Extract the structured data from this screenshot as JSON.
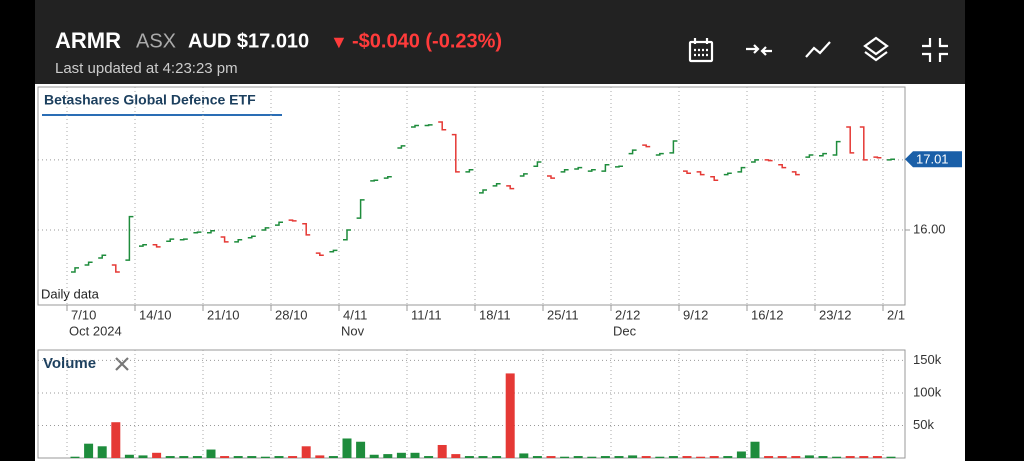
{
  "header": {
    "symbol": "ARMR",
    "exchange": "ASX",
    "price": "AUD $17.010",
    "arrow": "▼",
    "change": "-$0.040 (-0.23%)",
    "updated": "Last updated at 4:23:23 pm"
  },
  "chart_data": [
    {
      "type": "ohlc",
      "title": "Betashares Global Defence ETF",
      "note": "Daily data",
      "categories": [
        "7/10",
        null,
        null,
        null,
        null,
        "14/10",
        null,
        null,
        null,
        null,
        "21/10",
        null,
        null,
        null,
        null,
        "28/10",
        null,
        null,
        null,
        null,
        "4/11",
        null,
        null,
        null,
        null,
        "11/11",
        null,
        null,
        null,
        null,
        "18/11",
        null,
        null,
        null,
        null,
        "25/11",
        null,
        null,
        null,
        null,
        "2/12",
        null,
        null,
        null,
        null,
        "9/12",
        null,
        null,
        null,
        null,
        "16/12",
        null,
        null,
        null,
        null,
        "23/12",
        null,
        null,
        null,
        null,
        "2/1"
      ],
      "month_labels": [
        "Oct 2024",
        null,
        null,
        null,
        null,
        null,
        null,
        null,
        null,
        null,
        null,
        null,
        null,
        null,
        null,
        null,
        null,
        null,
        null,
        null,
        "Nov",
        null,
        null,
        null,
        null,
        null,
        null,
        null,
        null,
        null,
        null,
        null,
        null,
        null,
        null,
        null,
        null,
        null,
        null,
        null,
        "Dec",
        null,
        null,
        null,
        null,
        null,
        null,
        null,
        null,
        null,
        null,
        null,
        null,
        null,
        null,
        null,
        null,
        null,
        null,
        null,
        null
      ],
      "open": [
        15.4,
        15.5,
        15.6,
        15.5,
        15.57,
        15.77,
        15.79,
        15.84,
        15.86,
        15.96,
        15.96,
        15.9,
        15.83,
        15.89,
        16.0,
        16.07,
        16.14,
        16.09,
        15.67,
        15.69,
        15.86,
        16.17,
        16.7,
        16.74,
        17.17,
        17.47,
        17.49,
        17.54,
        17.36,
        16.83,
        16.53,
        16.63,
        16.63,
        16.77,
        16.91,
        16.77,
        16.83,
        16.87,
        16.84,
        16.84,
        16.9,
        17.09,
        17.21,
        17.07,
        17.1,
        16.84,
        16.83,
        16.76,
        16.79,
        16.83,
        16.97,
        17.0,
        16.93,
        16.83,
        17.04,
        17.06,
        17.07,
        17.47,
        17.47,
        17.04,
        17.0
      ],
      "close": [
        15.46,
        15.54,
        15.64,
        15.4,
        16.19,
        15.79,
        15.76,
        15.87,
        15.87,
        15.97,
        15.99,
        15.83,
        15.86,
        15.91,
        16.03,
        16.11,
        16.13,
        15.93,
        15.64,
        15.71,
        16.0,
        16.43,
        16.71,
        16.76,
        17.2,
        17.49,
        17.5,
        17.43,
        16.83,
        16.86,
        16.57,
        16.66,
        16.59,
        16.8,
        16.97,
        16.74,
        16.86,
        16.89,
        16.86,
        16.93,
        16.91,
        17.14,
        17.19,
        17.09,
        17.27,
        16.81,
        16.79,
        16.71,
        16.81,
        16.89,
        17.0,
        16.99,
        16.89,
        16.79,
        17.07,
        17.09,
        17.26,
        17.1,
        17.0,
        17.03,
        17.01
      ],
      "up_color": "#1e8c3c",
      "down_color": "#e53935",
      "ylim": [
        14.93,
        18.04
      ],
      "yticks": [
        {
          "value": 16,
          "label": "16.00"
        }
      ],
      "grid_lines": [
        16,
        17
      ],
      "last_price": 17.01,
      "last_price_color": "#1a5fa8"
    },
    {
      "type": "volume",
      "title": "Volume",
      "values": [
        2000,
        22000,
        18000,
        55000,
        5000,
        4000,
        8000,
        3000,
        3000,
        3000,
        13000,
        3000,
        3000,
        3000,
        2000,
        3000,
        3000,
        18000,
        4000,
        3000,
        30000,
        25000,
        5000,
        6000,
        8000,
        8000,
        3000,
        20000,
        6000,
        3000,
        3000,
        3000,
        130000,
        7000,
        3000,
        3000,
        2000,
        3000,
        2000,
        3000,
        3000,
        4000,
        3000,
        2000,
        3000,
        3000,
        2000,
        3000,
        3000,
        10000,
        25000,
        3000,
        3000,
        3000,
        4000,
        3000,
        2000,
        3000,
        3000,
        3000,
        2000
      ],
      "ylim": [
        0,
        166000
      ],
      "yticks": [
        {
          "value": 50000,
          "label": "50k"
        },
        {
          "value": 100000,
          "label": "100k"
        },
        {
          "value": 150000,
          "label": "150k"
        }
      ]
    }
  ]
}
